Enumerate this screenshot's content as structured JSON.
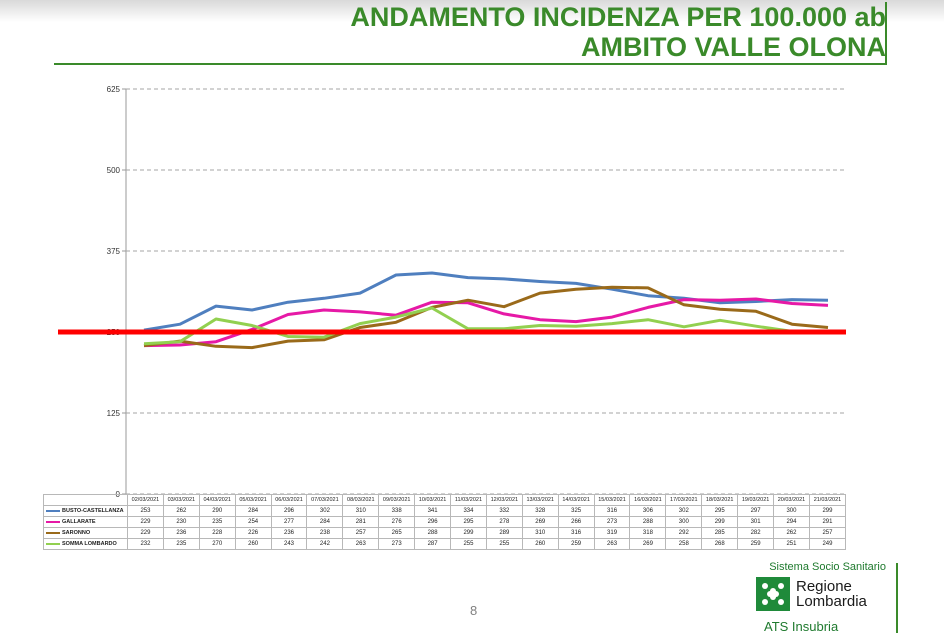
{
  "header": {
    "title_line1": "ANDAMENTO INCIDENZA PER 100.000 ab",
    "title_line2": "AMBITO VALLE OLONA"
  },
  "page_number": "8",
  "logo": {
    "system": "Sistema Socio Sanitario",
    "name_line1": "Regione",
    "name_line2": "Lombardia",
    "org": "ATS Insubria"
  },
  "colors": {
    "title": "#3a8a2a",
    "threshold": "#ff0000",
    "logo_green": "#1f8a3a"
  },
  "chart_data": {
    "type": "line",
    "title": "",
    "xlabel": "",
    "ylabel": "",
    "ylim": [
      0,
      625
    ],
    "yticks": [
      "0",
      "125",
      "250",
      "375",
      "500",
      "625"
    ],
    "grid": true,
    "categories": [
      "02/03/2021",
      "03/03/2021",
      "04/03/2021",
      "05/03/2021",
      "06/03/2021",
      "07/03/2021",
      "08/03/2021",
      "09/03/2021",
      "10/03/2021",
      "11/03/2021",
      "12/03/2021",
      "13/03/2021",
      "14/03/2021",
      "15/03/2021",
      "16/03/2021",
      "17/03/2021",
      "18/03/2021",
      "19/03/2021",
      "20/03/2021",
      "21/03/2021"
    ],
    "threshold": 250,
    "series": [
      {
        "name": "BUSTO-CASTELLANZA",
        "color": "#4f7fbf",
        "values": [
          253,
          262,
          290,
          284,
          296,
          302,
          310,
          338,
          341,
          334,
          332,
          328,
          325,
          316,
          306,
          302,
          295,
          297,
          300,
          299
        ]
      },
      {
        "name": "GALLARATE",
        "color": "#e619a6",
        "values": [
          229,
          230,
          235,
          254,
          277,
          284,
          281,
          276,
          296,
          295,
          278,
          269,
          266,
          273,
          288,
          300,
          299,
          301,
          294,
          291
        ]
      },
      {
        "name": "SARONNO",
        "color": "#9a6a1a",
        "values": [
          229,
          236,
          228,
          226,
          236,
          238,
          257,
          265,
          288,
          299,
          289,
          310,
          316,
          319,
          318,
          292,
          285,
          282,
          262,
          257
        ]
      },
      {
        "name": "SOMMA LOMBARDO",
        "color": "#92d050",
        "values": [
          232,
          235,
          270,
          260,
          243,
          242,
          263,
          273,
          287,
          255,
          255,
          260,
          259,
          263,
          269,
          258,
          268,
          259,
          251,
          249
        ]
      }
    ]
  }
}
